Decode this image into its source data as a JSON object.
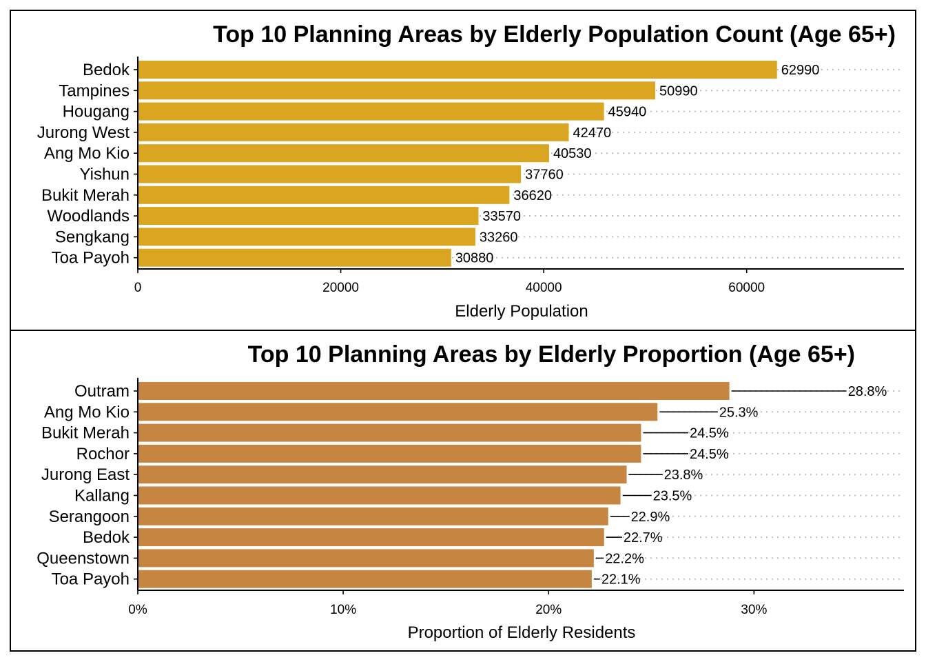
{
  "chart_data": [
    {
      "type": "bar",
      "orientation": "horizontal",
      "title": "Top 10 Planning Areas by Elderly Population Count (Age 65+)",
      "xlabel": "Elderly Population",
      "ylabel": "",
      "categories": [
        "Bedok",
        "Tampines",
        "Hougang",
        "Jurong West",
        "Ang Mo Kio",
        "Yishun",
        "Bukit Merah",
        "Woodlands",
        "Sengkang",
        "Toa Payoh"
      ],
      "values": [
        62990,
        50990,
        45940,
        42470,
        40530,
        37760,
        36620,
        33570,
        33260,
        30880
      ],
      "value_labels": [
        "62990",
        "50990",
        "45940",
        "42470",
        "40530",
        "37760",
        "36620",
        "33570",
        "33260",
        "30880"
      ],
      "xlim": [
        0,
        75500
      ],
      "xticks": [
        0,
        20000,
        40000,
        60000
      ],
      "xtick_labels": [
        "0",
        "20000",
        "40000",
        "60000"
      ],
      "bar_color": "#DAA520",
      "grid": "dotted horizontal lines",
      "legend": "none"
    },
    {
      "type": "bar",
      "orientation": "horizontal",
      "title": "Top 10 Planning Areas by Elderly Proportion (Age 65+)",
      "xlabel": "Proportion of Elderly Residents",
      "ylabel": "",
      "categories": [
        "Outram",
        "Ang Mo Kio",
        "Bukit Merah",
        "Rochor",
        "Jurong East",
        "Kallang",
        "Serangoon",
        "Bedok",
        "Queenstown",
        "Toa Payoh"
      ],
      "values": [
        0.288,
        0.253,
        0.245,
        0.245,
        0.238,
        0.235,
        0.229,
        0.227,
        0.222,
        0.221
      ],
      "value_labels": [
        "28.8%",
        "25.3%",
        "24.5%",
        "24.5%",
        "23.8%",
        "23.5%",
        "22.9%",
        "22.7%",
        "22.2%",
        "22.1%"
      ],
      "xlim": [
        0,
        0.373
      ],
      "xticks": [
        0,
        0.1,
        0.2,
        0.3
      ],
      "xtick_labels": [
        "0%",
        "10%",
        "20%",
        "30%"
      ],
      "bar_color": "#C68642",
      "label_leader_lines": true,
      "grid": "dotted horizontal lines",
      "legend": "none"
    }
  ]
}
